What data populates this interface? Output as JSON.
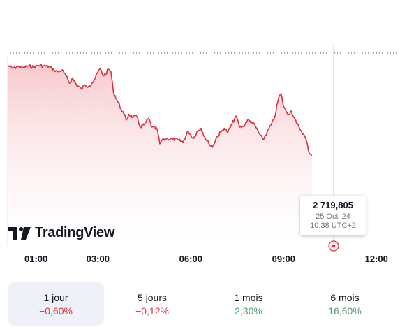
{
  "chart_data": {
    "type": "area",
    "x_ticks": [
      "01:00",
      "03:00",
      "06:00",
      "09:00",
      "12:00"
    ],
    "y_min": 2716,
    "y_max": 2739,
    "series": [
      {
        "points": [
          [
            "00:05",
            2737.6
          ],
          [
            "00:15",
            2737.1
          ],
          [
            "00:25",
            2737.4
          ],
          [
            "00:35",
            2737.2
          ],
          [
            "00:45",
            2737.5
          ],
          [
            "00:55",
            2737.3
          ],
          [
            "01:05",
            2737.6
          ],
          [
            "01:15",
            2737.5
          ],
          [
            "01:25",
            2737.4
          ],
          [
            "01:35",
            2736.8
          ],
          [
            "01:42",
            2736.5
          ],
          [
            "01:50",
            2736.8
          ],
          [
            "01:58",
            2735.8
          ],
          [
            "02:05",
            2734.5
          ],
          [
            "02:10",
            2735.4
          ],
          [
            "02:18",
            2734.3
          ],
          [
            "02:28",
            2733.5
          ],
          [
            "02:35",
            2734.2
          ],
          [
            "02:42",
            2734.0
          ],
          [
            "02:48",
            2734.5
          ],
          [
            "02:55",
            2735.4
          ],
          [
            "03:00",
            2736.5
          ],
          [
            "03:05",
            2737.0
          ],
          [
            "03:10",
            2735.8
          ],
          [
            "03:15",
            2736.1
          ],
          [
            "03:20",
            2736.9
          ],
          [
            "03:25",
            2736.6
          ],
          [
            "03:30",
            2733.0
          ],
          [
            "03:38",
            2731.4
          ],
          [
            "03:45",
            2730.0
          ],
          [
            "03:50",
            2729.2
          ],
          [
            "03:55",
            2728.1
          ],
          [
            "04:00",
            2729.1
          ],
          [
            "04:08",
            2728.6
          ],
          [
            "04:15",
            2728.8
          ],
          [
            "04:22",
            2726.9
          ],
          [
            "04:30",
            2727.3
          ],
          [
            "04:38",
            2728.4
          ],
          [
            "04:45",
            2726.9
          ],
          [
            "04:55",
            2726.5
          ],
          [
            "05:00",
            2724.0
          ],
          [
            "05:05",
            2724.7
          ],
          [
            "05:15",
            2724.9
          ],
          [
            "05:25",
            2724.8
          ],
          [
            "05:35",
            2724.7
          ],
          [
            "05:45",
            2724.3
          ],
          [
            "05:55",
            2726.2
          ],
          [
            "06:05",
            2724.9
          ],
          [
            "06:12",
            2726.1
          ],
          [
            "06:20",
            2726.7
          ],
          [
            "06:28",
            2725.0
          ],
          [
            "06:35",
            2724.1
          ],
          [
            "06:42",
            2723.4
          ],
          [
            "06:50",
            2725.1
          ],
          [
            "06:58",
            2726.0
          ],
          [
            "07:05",
            2726.7
          ],
          [
            "07:12",
            2726.0
          ],
          [
            "07:20",
            2727.5
          ],
          [
            "07:28",
            2728.8
          ],
          [
            "07:35",
            2726.9
          ],
          [
            "07:42",
            2727.0
          ],
          [
            "07:50",
            2728.1
          ],
          [
            "07:58",
            2727.8
          ],
          [
            "08:05",
            2727.1
          ],
          [
            "08:12",
            2725.9
          ],
          [
            "08:20",
            2724.7
          ],
          [
            "08:28",
            2726.0
          ],
          [
            "08:35",
            2727.2
          ],
          [
            "08:42",
            2728.3
          ],
          [
            "08:50",
            2731.9
          ],
          [
            "08:55",
            2732.7
          ],
          [
            "09:00",
            2730.5
          ],
          [
            "09:05",
            2729.6
          ],
          [
            "09:10",
            2729.1
          ],
          [
            "09:15",
            2729.7
          ],
          [
            "09:20",
            2728.6
          ],
          [
            "09:25",
            2727.6
          ],
          [
            "09:30",
            2726.9
          ],
          [
            "09:35",
            2726.1
          ],
          [
            "09:40",
            2725.5
          ],
          [
            "09:45",
            2724.3
          ],
          [
            "09:48",
            2722.9
          ],
          [
            "09:52",
            2722.2
          ],
          [
            "09:55",
            2722.0
          ]
        ]
      }
    ],
    "tooltip": {
      "value": "2 719,805",
      "date": "25 Oct '24",
      "time": "10:38 UTC+2"
    },
    "colors": {
      "line": "#dc2f3f",
      "fill_top": "#f6c7cb",
      "fill_bottom": "#ffffff"
    }
  },
  "brand": {
    "name": "TradingView"
  },
  "tabs": [
    {
      "label": "1 jour",
      "change": "−0,60%",
      "color": "#e03843",
      "active": true
    },
    {
      "label": "5 jours",
      "change": "−0,12%",
      "color": "#e03843",
      "active": false
    },
    {
      "label": "1 mois",
      "change": "2,30%",
      "color": "#5b9b74",
      "active": false
    },
    {
      "label": "6 mois",
      "change": "16,60%",
      "color": "#5b9b74",
      "active": false
    }
  ]
}
